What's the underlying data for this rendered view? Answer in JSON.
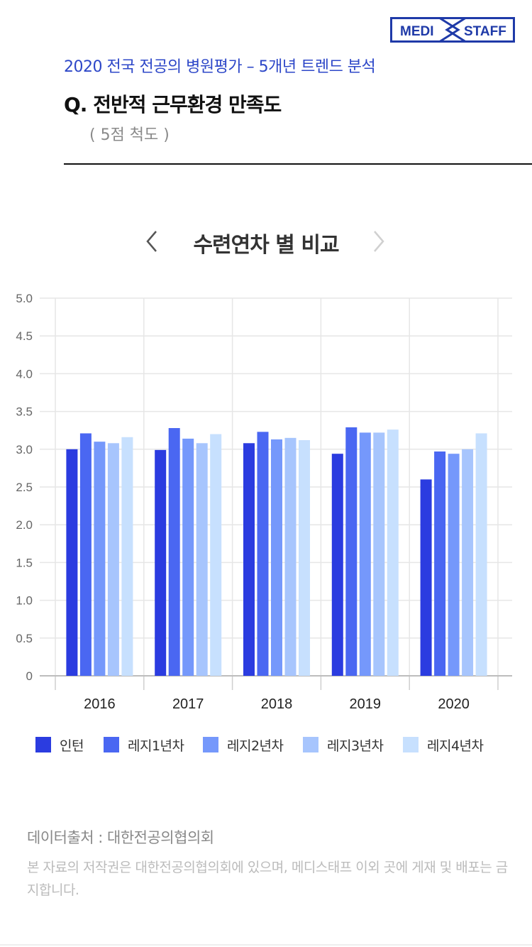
{
  "logo": {
    "left_text": "MEDI",
    "right_text": "STAFF",
    "color": "#1f3aa8"
  },
  "header": {
    "subtitle": "2020 전국 전공의 병원평가 – 5개년 트렌드 분석",
    "question": "Q. 전반적 근무환경 만족도",
    "scale": "( 5점 척도 )"
  },
  "nav": {
    "title": "수련연차 별 비교",
    "prev_icon": "chevron-left-icon",
    "next_icon": "chevron-right-icon"
  },
  "chart_data": {
    "type": "bar",
    "categories": [
      "2016",
      "2017",
      "2018",
      "2019",
      "2020"
    ],
    "ylim": [
      0,
      5.0
    ],
    "yticks": [
      "0",
      "0.5",
      "1.0",
      "1.5",
      "2.0",
      "2.5",
      "3.0",
      "3.5",
      "4.0",
      "4.5",
      "5.0"
    ],
    "grid": true,
    "legend_position": "bottom",
    "series": [
      {
        "name": "인턴",
        "color": "#2b3ce0",
        "values": [
          3.0,
          2.99,
          3.08,
          2.94,
          2.6
        ]
      },
      {
        "name": "레지1년차",
        "color": "#4a67f2",
        "values": [
          3.21,
          3.28,
          3.23,
          3.29,
          2.97
        ]
      },
      {
        "name": "레지2년차",
        "color": "#7598fb",
        "values": [
          3.1,
          3.14,
          3.13,
          3.22,
          2.94
        ]
      },
      {
        "name": "레지3년차",
        "color": "#a7c5fd",
        "values": [
          3.08,
          3.08,
          3.15,
          3.22,
          3.0
        ]
      },
      {
        "name": "레지4년차",
        "color": "#c7e0fe",
        "values": [
          3.16,
          3.2,
          3.12,
          3.26,
          3.21
        ]
      }
    ]
  },
  "footer": {
    "source": "데이터출처 : 대한전공의협의회",
    "copyright": "본 자료의 저작권은 대한전공의협의회에 있으며, 메디스태프 이외 곳에 게재 및 배포는 금지합니다."
  }
}
